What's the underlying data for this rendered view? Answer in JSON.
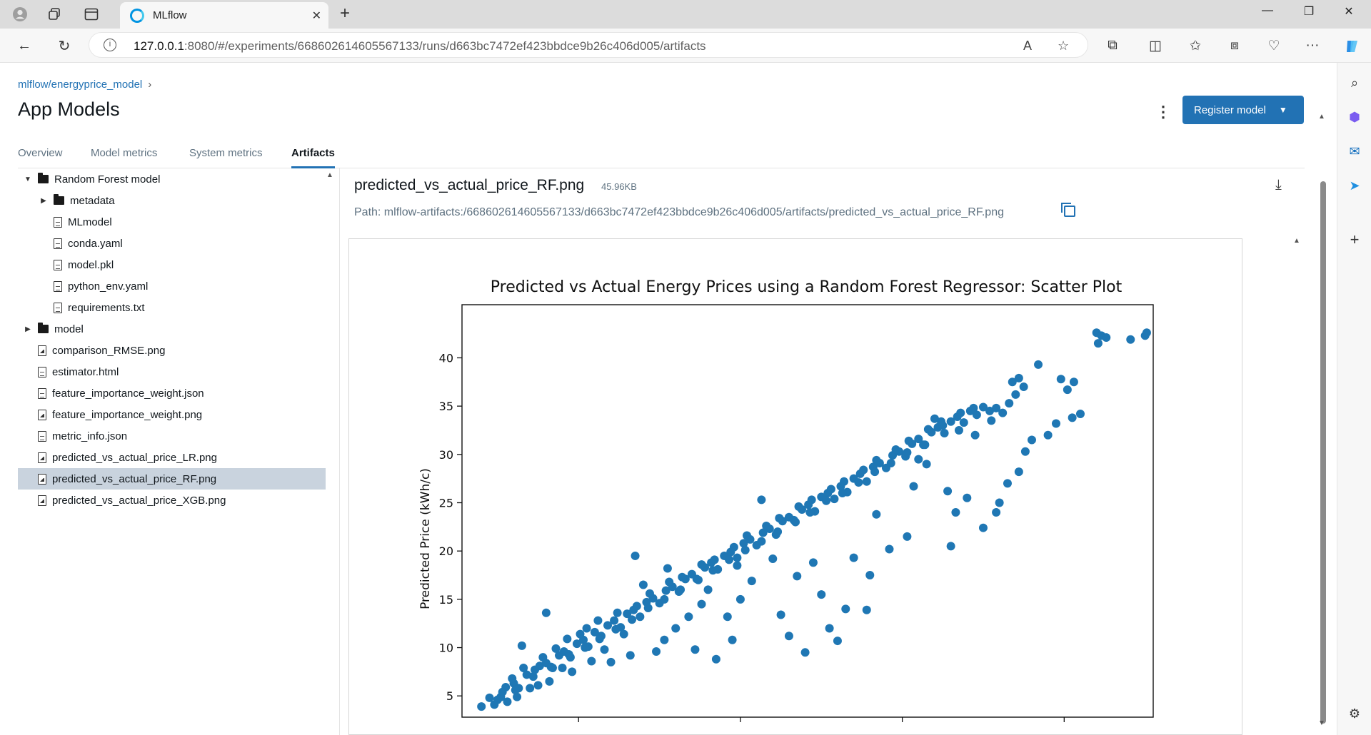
{
  "browser": {
    "tab_title": "MLflow",
    "url_host": "127.0.0.1",
    "url_rest": ":8080/#/experiments/668602614605567133/runs/d663bc7472ef423bbdce9b26c406d005/artifacts"
  },
  "header": {
    "breadcrumb": "mlflow/energyprice_model",
    "title": "App Models",
    "register_label": "Register model"
  },
  "tabs": [
    "Overview",
    "Model metrics",
    "System metrics",
    "Artifacts"
  ],
  "tree": [
    {
      "label": "Random Forest model",
      "kind": "folder",
      "expanded": true,
      "depth": 0
    },
    {
      "label": "metadata",
      "kind": "folder",
      "expanded": false,
      "depth": 1
    },
    {
      "label": "MLmodel",
      "kind": "file",
      "depth": 1
    },
    {
      "label": "conda.yaml",
      "kind": "code",
      "depth": 1
    },
    {
      "label": "model.pkl",
      "kind": "file",
      "depth": 1
    },
    {
      "label": "python_env.yaml",
      "kind": "code",
      "depth": 1
    },
    {
      "label": "requirements.txt",
      "kind": "code",
      "depth": 1
    },
    {
      "label": "model",
      "kind": "folder",
      "expanded": false,
      "depth": 0
    },
    {
      "label": "comparison_RMSE.png",
      "kind": "image",
      "depth": 0
    },
    {
      "label": "estimator.html",
      "kind": "file",
      "depth": 0
    },
    {
      "label": "feature_importance_weight.json",
      "kind": "code",
      "depth": 0
    },
    {
      "label": "feature_importance_weight.png",
      "kind": "image",
      "depth": 0
    },
    {
      "label": "metric_info.json",
      "kind": "code",
      "depth": 0
    },
    {
      "label": "predicted_vs_actual_price_LR.png",
      "kind": "image",
      "depth": 0
    },
    {
      "label": "predicted_vs_actual_price_RF.png",
      "kind": "image",
      "depth": 0,
      "selected": true
    },
    {
      "label": "predicted_vs_actual_price_XGB.png",
      "kind": "image",
      "depth": 0
    }
  ],
  "preview": {
    "file_name": "predicted_vs_actual_price_RF.png",
    "file_size": "45.96KB",
    "path": "Path: mlflow-artifacts:/668602614605567133/d663bc7472ef423bbdce9b26c406d005/artifacts/predicted_vs_actual_price_RF.png"
  },
  "chart_data": {
    "type": "scatter",
    "title": "Predicted vs Actual Energy Prices using a Random Forest Regressor: Scatter Plot",
    "ylabel": "Predicted Price (kWh/c)",
    "xlabel": "",
    "ylim": [
      2.8,
      45.5
    ],
    "xlim": [
      2.8,
      45.5
    ],
    "yticks": [
      "5",
      "10",
      "15",
      "20",
      "25",
      "30",
      "35",
      "40"
    ],
    "color": "#1f77b4",
    "points": [
      [
        4.0,
        3.9
      ],
      [
        4.5,
        4.8
      ],
      [
        5.0,
        4.6
      ],
      [
        5.5,
        5.9
      ],
      [
        6.0,
        6.3
      ],
      [
        6.3,
        5.8
      ],
      [
        6.8,
        7.2
      ],
      [
        7.2,
        7.0
      ],
      [
        7.6,
        8.1
      ],
      [
        8.0,
        8.4
      ],
      [
        8.4,
        7.9
      ],
      [
        8.8,
        9.2
      ],
      [
        9.1,
        9.6
      ],
      [
        9.5,
        9.0
      ],
      [
        9.9,
        10.4
      ],
      [
        10.3,
        10.8
      ],
      [
        10.6,
        10.1
      ],
      [
        11.0,
        11.6
      ],
      [
        11.4,
        11.2
      ],
      [
        11.8,
        12.3
      ],
      [
        12.2,
        12.8
      ],
      [
        12.6,
        12.1
      ],
      [
        13.0,
        13.5
      ],
      [
        13.4,
        13.9
      ],
      [
        13.8,
        13.2
      ],
      [
        14.2,
        14.7
      ],
      [
        14.6,
        15.1
      ],
      [
        15.0,
        14.6
      ],
      [
        15.4,
        15.9
      ],
      [
        15.8,
        16.3
      ],
      [
        16.2,
        15.8
      ],
      [
        16.6,
        17.1
      ],
      [
        17.0,
        17.6
      ],
      [
        17.4,
        17.0
      ],
      [
        17.8,
        18.3
      ],
      [
        18.2,
        18.8
      ],
      [
        18.6,
        18.1
      ],
      [
        19.0,
        19.5
      ],
      [
        19.4,
        19.9
      ],
      [
        19.8,
        19.3
      ],
      [
        20.2,
        20.8
      ],
      [
        20.6,
        21.2
      ],
      [
        21.0,
        20.6
      ],
      [
        21.4,
        21.9
      ],
      [
        21.8,
        22.3
      ],
      [
        22.2,
        21.7
      ],
      [
        22.6,
        23.1
      ],
      [
        23.0,
        23.5
      ],
      [
        23.4,
        23.0
      ],
      [
        23.8,
        24.3
      ],
      [
        24.2,
        24.8
      ],
      [
        24.6,
        24.1
      ],
      [
        25.0,
        25.6
      ],
      [
        25.4,
        26.0
      ],
      [
        25.8,
        25.4
      ],
      [
        26.2,
        26.7
      ],
      [
        26.6,
        26.1
      ],
      [
        27.0,
        27.5
      ],
      [
        27.4,
        28.0
      ],
      [
        27.8,
        27.2
      ],
      [
        28.2,
        28.7
      ],
      [
        28.6,
        29.1
      ],
      [
        29.0,
        28.6
      ],
      [
        29.4,
        29.9
      ],
      [
        29.8,
        30.3
      ],
      [
        30.2,
        29.8
      ],
      [
        30.6,
        31.1
      ],
      [
        31.0,
        31.6
      ],
      [
        31.4,
        31.0
      ],
      [
        31.8,
        32.3
      ],
      [
        32.2,
        32.8
      ],
      [
        32.6,
        32.2
      ],
      [
        33.0,
        33.4
      ],
      [
        33.4,
        33.9
      ],
      [
        33.8,
        33.3
      ],
      [
        34.2,
        34.5
      ],
      [
        34.6,
        34.1
      ],
      [
        35.0,
        34.9
      ],
      [
        35.4,
        34.5
      ],
      [
        35.8,
        34.8
      ],
      [
        36.2,
        34.3
      ],
      [
        36.6,
        35.3
      ],
      [
        37.0,
        36.2
      ],
      [
        36.8,
        37.5
      ],
      [
        37.2,
        37.9
      ],
      [
        37.5,
        37.0
      ],
      [
        38.4,
        39.3
      ],
      [
        39.8,
        37.8
      ],
      [
        40.2,
        36.7
      ],
      [
        40.6,
        37.5
      ],
      [
        42.0,
        42.6
      ],
      [
        42.3,
        42.3
      ],
      [
        42.6,
        42.1
      ],
      [
        42.1,
        41.5
      ],
      [
        44.1,
        41.9
      ],
      [
        45.0,
        42.3
      ],
      [
        45.1,
        42.6
      ],
      [
        6.5,
        10.2
      ],
      [
        8.0,
        13.6
      ],
      [
        10.5,
        12.0
      ],
      [
        12.0,
        8.5
      ],
      [
        13.5,
        19.5
      ],
      [
        14.0,
        16.5
      ],
      [
        15.5,
        18.2
      ],
      [
        16.0,
        12.0
      ],
      [
        17.2,
        9.8
      ],
      [
        18.5,
        8.8
      ],
      [
        19.2,
        13.2
      ],
      [
        19.5,
        10.8
      ],
      [
        20.0,
        15.0
      ],
      [
        21.3,
        25.3
      ],
      [
        22.5,
        13.4
      ],
      [
        23.0,
        11.2
      ],
      [
        24.0,
        9.5
      ],
      [
        25.5,
        12.0
      ],
      [
        26.0,
        10.7
      ],
      [
        27.0,
        19.3
      ],
      [
        27.8,
        13.9
      ],
      [
        28.4,
        23.8
      ],
      [
        29.2,
        20.2
      ],
      [
        30.3,
        21.5
      ],
      [
        31.0,
        29.5
      ],
      [
        32.0,
        33.7
      ],
      [
        32.5,
        33.0
      ],
      [
        33.5,
        32.5
      ],
      [
        33.0,
        20.5
      ],
      [
        34.5,
        32.0
      ],
      [
        35.0,
        22.4
      ],
      [
        35.5,
        33.5
      ],
      [
        36.0,
        25.0
      ],
      [
        36.5,
        27.0
      ],
      [
        37.2,
        28.2
      ],
      [
        37.6,
        30.3
      ],
      [
        38.0,
        31.5
      ],
      [
        39.0,
        32.0
      ],
      [
        39.5,
        33.2
      ],
      [
        40.5,
        33.8
      ],
      [
        41.0,
        34.2
      ],
      [
        31.5,
        29.0
      ],
      [
        30.7,
        26.7
      ],
      [
        32.8,
        26.2
      ],
      [
        33.3,
        24.0
      ],
      [
        34.0,
        25.5
      ],
      [
        35.8,
        24.0
      ],
      [
        28.0,
        17.5
      ],
      [
        26.5,
        14.0
      ],
      [
        25.0,
        15.5
      ],
      [
        24.5,
        18.8
      ],
      [
        23.5,
        17.4
      ],
      [
        22.0,
        19.2
      ],
      [
        20.7,
        16.9
      ],
      [
        19.8,
        18.5
      ],
      [
        18.0,
        16.0
      ],
      [
        17.6,
        14.5
      ],
      [
        16.8,
        13.2
      ],
      [
        15.3,
        10.8
      ],
      [
        14.8,
        9.6
      ],
      [
        13.2,
        9.2
      ],
      [
        12.8,
        11.4
      ],
      [
        11.6,
        9.8
      ],
      [
        10.8,
        8.6
      ],
      [
        9.6,
        7.5
      ],
      [
        9.0,
        7.9
      ],
      [
        8.2,
        6.5
      ],
      [
        7.5,
        6.1
      ],
      [
        7.0,
        5.8
      ],
      [
        6.2,
        4.9
      ],
      [
        5.6,
        4.4
      ],
      [
        5.2,
        4.9
      ],
      [
        4.8,
        4.1
      ],
      [
        5.9,
        6.8
      ],
      [
        6.6,
        7.9
      ],
      [
        7.8,
        9.0
      ],
      [
        8.6,
        9.9
      ],
      [
        9.3,
        10.9
      ],
      [
        10.1,
        11.4
      ],
      [
        11.2,
        12.8
      ],
      [
        12.4,
        13.6
      ],
      [
        13.6,
        14.3
      ],
      [
        14.4,
        15.6
      ],
      [
        15.6,
        16.8
      ],
      [
        16.4,
        17.3
      ],
      [
        17.6,
        18.6
      ],
      [
        18.4,
        19.1
      ],
      [
        19.6,
        20.4
      ],
      [
        20.4,
        21.6
      ],
      [
        21.6,
        22.6
      ],
      [
        22.4,
        23.4
      ],
      [
        23.6,
        24.6
      ],
      [
        24.4,
        25.3
      ],
      [
        25.6,
        26.4
      ],
      [
        26.4,
        27.2
      ],
      [
        27.6,
        28.4
      ],
      [
        28.4,
        29.4
      ],
      [
        29.6,
        30.5
      ],
      [
        30.4,
        31.4
      ],
      [
        31.6,
        32.6
      ],
      [
        32.4,
        33.4
      ],
      [
        33.6,
        34.3
      ],
      [
        34.4,
        34.8
      ],
      [
        5.3,
        5.4
      ],
      [
        6.1,
        5.6
      ],
      [
        7.3,
        7.7
      ],
      [
        8.3,
        8.0
      ],
      [
        9.4,
        9.3
      ],
      [
        10.4,
        10.0
      ],
      [
        11.3,
        10.9
      ],
      [
        12.3,
        11.9
      ],
      [
        13.3,
        12.9
      ],
      [
        14.3,
        14.1
      ],
      [
        15.3,
        15.0
      ],
      [
        16.3,
        16.0
      ],
      [
        17.3,
        17.1
      ],
      [
        18.3,
        18.0
      ],
      [
        19.3,
        19.1
      ],
      [
        20.3,
        20.1
      ],
      [
        21.3,
        21.0
      ],
      [
        22.3,
        22.0
      ],
      [
        23.3,
        23.2
      ],
      [
        24.3,
        24.0
      ],
      [
        25.3,
        25.2
      ],
      [
        26.3,
        26.0
      ],
      [
        27.3,
        27.1
      ],
      [
        28.3,
        28.2
      ],
      [
        29.3,
        29.1
      ],
      [
        30.3,
        30.2
      ],
      [
        31.3,
        31.0
      ]
    ]
  }
}
